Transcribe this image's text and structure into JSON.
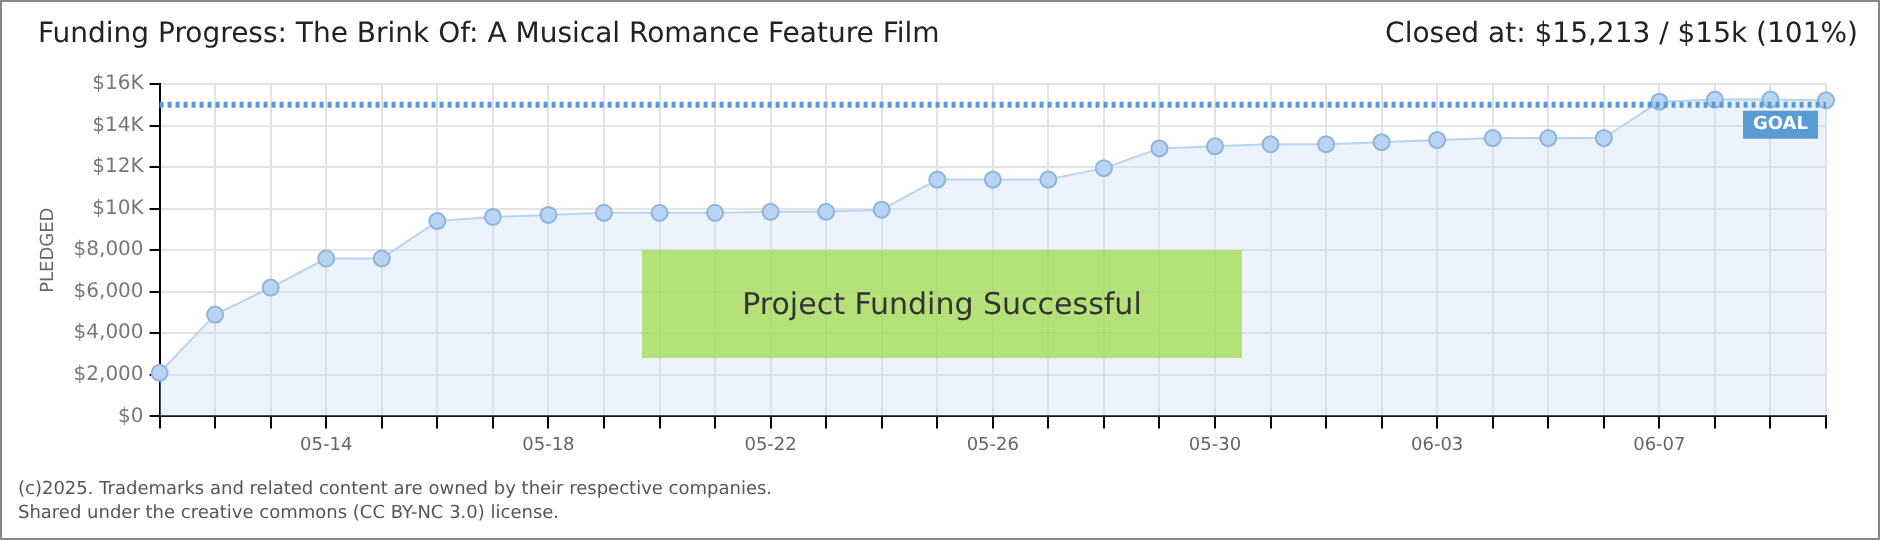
{
  "chart_data": {
    "type": "area",
    "title": "Funding Progress: The Brink Of: A Musical Romance Feature Film",
    "ylabel": "PLEDGED",
    "annotations": [
      "Closed at:  $15,213 /  $15k (101%)",
      "Project Funding Successful",
      "(c)2025. Trademarks and related content are owned by their respective companies.",
      "Shared under the creative commons (CC BY-NC 3.0) license."
    ],
    "categories": [
      null,
      null,
      null,
      "05-14",
      null,
      null,
      null,
      "05-18",
      null,
      null,
      null,
      "05-22",
      null,
      null,
      null,
      "05-26",
      null,
      null,
      null,
      "05-30",
      null,
      null,
      null,
      "06-03",
      null,
      null,
      null,
      "06-07",
      null,
      null,
      null
    ],
    "series": [
      {
        "color": "#b8d4f2",
        "values": [
          2100,
          4900,
          6200,
          7600,
          7600,
          9400,
          9600,
          9700,
          9800,
          9800,
          9800,
          9850,
          9850,
          9950,
          11400,
          11400,
          11400,
          11950,
          12900,
          13000,
          13100,
          13100,
          13200,
          13300,
          13400,
          13400,
          13400,
          15150,
          15250,
          15250,
          15213
        ]
      }
    ],
    "ylim": [
      0,
      16000
    ],
    "yticks": [
      {
        "value": 0,
        "label": "$0"
      },
      {
        "value": 2000,
        "label": "$2,000"
      },
      {
        "value": 4000,
        "label": "$4,000"
      },
      {
        "value": 6000,
        "label": "$6,000"
      },
      {
        "value": 8000,
        "label": "$8,000"
      },
      {
        "value": 10000,
        "label": "$10K"
      },
      {
        "value": 12000,
        "label": "$12K"
      },
      {
        "value": 14000,
        "label": "$14K"
      },
      {
        "value": 16000,
        "label": "$16K"
      }
    ],
    "ref_lines": [
      {
        "axis": "y",
        "value": 15000,
        "label": "GOAL",
        "color": "#5b9bd5",
        "line_style": "dotted"
      }
    ],
    "grid": true,
    "marker": "circle",
    "line_style": "solid",
    "legend": false
  }
}
